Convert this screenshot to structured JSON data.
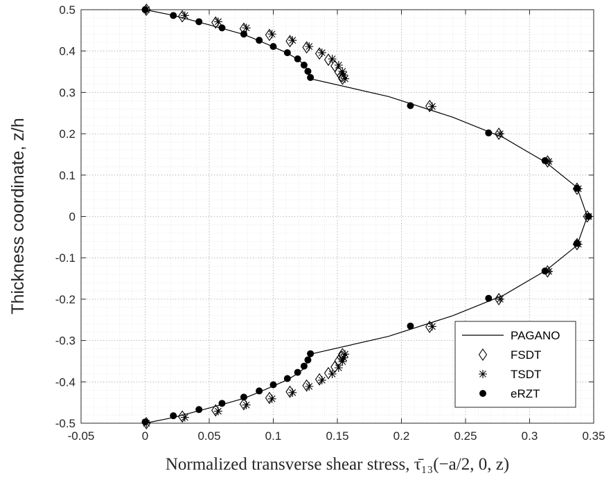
{
  "chart_data": {
    "type": "scatter",
    "xlabel": "Normalized transverse shear stress, τ̄₁₃(−a/2, 0, z)",
    "ylabel": "Thickness coordinate, z/h",
    "xlim": [
      -0.05,
      0.35
    ],
    "ylim": [
      -0.5,
      0.5
    ],
    "xticks": [
      "-0.05",
      "0",
      "0.05",
      "0.1",
      "0.15",
      "0.2",
      "0.25",
      "0.3",
      "0.35"
    ],
    "yticks": [
      "-0.5",
      "-0.4",
      "-0.3",
      "-0.2",
      "-0.1",
      "0",
      "0.1",
      "0.2",
      "0.3",
      "0.4",
      "0.5"
    ],
    "grid": "major and minor dotted",
    "legend_position": "bottom-right",
    "series": [
      {
        "name": "PAGANO",
        "style": "line",
        "color": "#000000",
        "x": [
          0,
          0.021,
          0.042,
          0.06,
          0.077,
          0.089,
          0.1,
          0.111,
          0.119,
          0.125,
          0.129,
          0.19,
          0.24,
          0.28,
          0.313,
          0.337,
          0.345,
          0.337,
          0.313,
          0.28,
          0.24,
          0.19,
          0.129,
          0.125,
          0.119,
          0.111,
          0.1,
          0.089,
          0.077,
          0.06,
          0.042,
          0.021,
          0
        ],
        "y": [
          0.5,
          0.487,
          0.47,
          0.455,
          0.44,
          0.425,
          0.41,
          0.395,
          0.38,
          0.365,
          0.333,
          0.29,
          0.24,
          0.19,
          0.13,
          0.07,
          0,
          -0.07,
          -0.13,
          -0.19,
          -0.24,
          -0.29,
          -0.333,
          -0.365,
          -0.38,
          -0.395,
          -0.41,
          -0.425,
          -0.44,
          -0.455,
          -0.47,
          -0.487,
          -0.5
        ]
      },
      {
        "name": "FSDT",
        "style": "diamond",
        "color": "#000000",
        "x": [
          0.001,
          0.029,
          0.055,
          0.077,
          0.097,
          0.113,
          0.126,
          0.136,
          0.143,
          0.148,
          0.151,
          0.153,
          0.154,
          0.222,
          0.276,
          0.314,
          0.337,
          0.345,
          0.337,
          0.314,
          0.276,
          0.222,
          0.154,
          0.153,
          0.151,
          0.148,
          0.143,
          0.136,
          0.126,
          0.113,
          0.097,
          0.077,
          0.055,
          0.029,
          0.001
        ],
        "y": [
          0.5,
          0.484,
          0.469,
          0.454,
          0.439,
          0.424,
          0.409,
          0.394,
          0.379,
          0.364,
          0.349,
          0.34,
          0.333,
          0.267,
          0.2,
          0.133,
          0.067,
          0,
          -0.067,
          -0.133,
          -0.2,
          -0.267,
          -0.333,
          -0.34,
          -0.349,
          -0.364,
          -0.379,
          -0.394,
          -0.409,
          -0.424,
          -0.439,
          -0.454,
          -0.469,
          -0.484,
          -0.5
        ]
      },
      {
        "name": "TSDT",
        "style": "asterisk",
        "color": "#000000",
        "x": [
          0.001,
          0.031,
          0.057,
          0.079,
          0.099,
          0.115,
          0.128,
          0.138,
          0.146,
          0.151,
          0.154,
          0.155,
          0.156,
          0.224,
          0.277,
          0.315,
          0.338,
          0.346,
          0.338,
          0.315,
          0.277,
          0.224,
          0.156,
          0.155,
          0.154,
          0.151,
          0.146,
          0.138,
          0.128,
          0.115,
          0.099,
          0.079,
          0.057,
          0.031,
          0.001
        ],
        "y": [
          0.5,
          0.486,
          0.471,
          0.456,
          0.441,
          0.426,
          0.411,
          0.396,
          0.381,
          0.366,
          0.351,
          0.342,
          0.333,
          0.266,
          0.2,
          0.133,
          0.067,
          0,
          -0.067,
          -0.133,
          -0.2,
          -0.266,
          -0.333,
          -0.342,
          -0.351,
          -0.366,
          -0.381,
          -0.396,
          -0.411,
          -0.426,
          -0.441,
          -0.456,
          -0.471,
          -0.486,
          -0.5
        ]
      },
      {
        "name": "eRZT",
        "style": "dot",
        "color": "#000000",
        "x": [
          0,
          0.022,
          0.042,
          0.06,
          0.077,
          0.089,
          0.1,
          0.111,
          0.119,
          0.124,
          0.127,
          0.129,
          0.207,
          0.268,
          0.312,
          0.337,
          0.346,
          0.337,
          0.312,
          0.268,
          0.207,
          0.129,
          0.127,
          0.124,
          0.119,
          0.111,
          0.1,
          0.089,
          0.077,
          0.06,
          0.042,
          0.022,
          0
        ],
        "y": [
          0.5,
          0.486,
          0.471,
          0.456,
          0.441,
          0.426,
          0.411,
          0.396,
          0.381,
          0.366,
          0.351,
          0.336,
          0.268,
          0.202,
          0.135,
          0.068,
          0,
          -0.065,
          -0.132,
          -0.198,
          -0.265,
          -0.332,
          -0.347,
          -0.362,
          -0.377,
          -0.392,
          -0.407,
          -0.422,
          -0.437,
          -0.452,
          -0.467,
          -0.482,
          -0.497
        ]
      }
    ]
  }
}
